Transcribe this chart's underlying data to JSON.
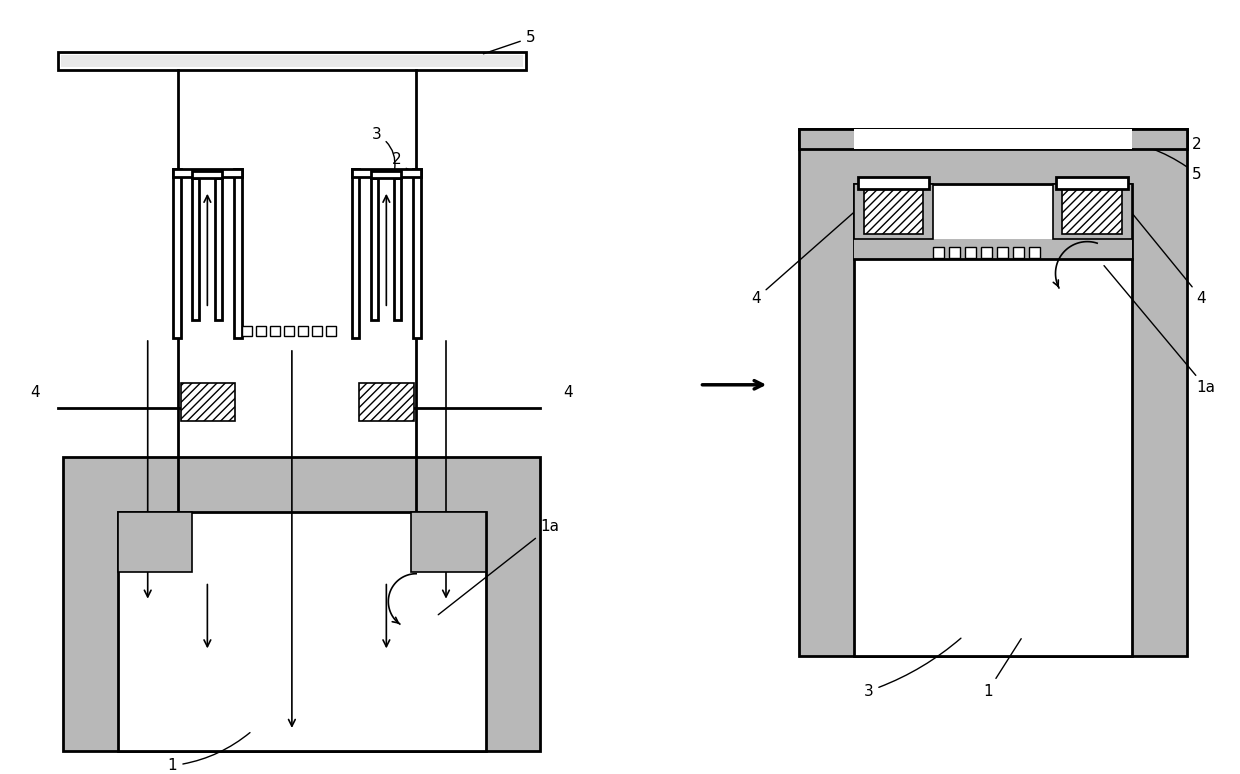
{
  "bg_color": "#ffffff",
  "lc": "#000000",
  "gray": "#b8b8b8",
  "figsize": [
    12.4,
    7.74
  ],
  "dpi": 100,
  "lw_main": 2.0,
  "lw_thin": 1.2,
  "fontsize": 11
}
